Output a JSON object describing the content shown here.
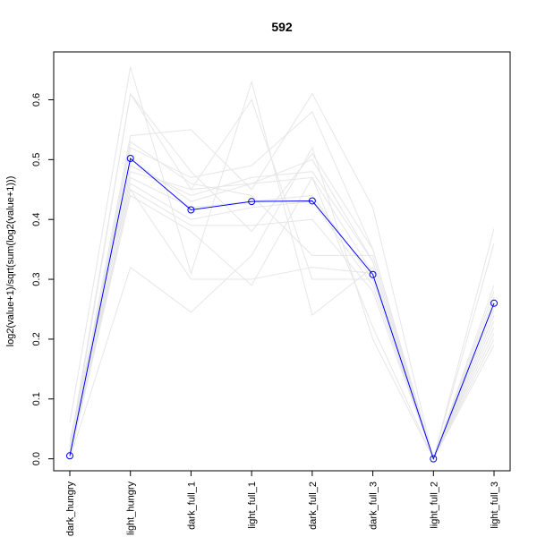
{
  "chart_data": {
    "type": "line",
    "title": "592",
    "ylabel": "log2(value+1)/sqrt(sum(log2(value+1)))",
    "categories": [
      "dark_hungry",
      "light_hungry",
      "dark_full_1",
      "light_full_1",
      "dark_full_2",
      "dark_full_3",
      "light_full_2",
      "light_full_3"
    ],
    "ylim": [
      -0.02,
      0.68
    ],
    "yticks": [
      0.0,
      0.1,
      0.2,
      0.3,
      0.4,
      0.5,
      0.6
    ],
    "ytick_labels": [
      "0.0",
      "0.1",
      "0.2",
      "0.3",
      "0.4",
      "0.5",
      "0.6"
    ],
    "grid": false,
    "highlight": {
      "values": [
        0.005,
        0.502,
        0.416,
        0.43,
        0.431,
        0.308,
        0.0,
        0.26
      ],
      "color": "#0000ff"
    },
    "background_series_color": "#e6e6e6",
    "background_series": [
      [
        0.06,
        0.655,
        0.31,
        0.63,
        0.24,
        0.32,
        0.0,
        0.385
      ],
      [
        0.02,
        0.61,
        0.45,
        0.6,
        0.3,
        0.3,
        0.0,
        0.36
      ],
      [
        0.01,
        0.54,
        0.55,
        0.45,
        0.61,
        0.42,
        0.0,
        0.29
      ],
      [
        0.0,
        0.52,
        0.47,
        0.49,
        0.58,
        0.35,
        0.0,
        0.28
      ],
      [
        0.03,
        0.5,
        0.43,
        0.46,
        0.5,
        0.33,
        0.0,
        0.27
      ],
      [
        0.02,
        0.49,
        0.44,
        0.47,
        0.48,
        0.33,
        0.0,
        0.26
      ],
      [
        0.01,
        0.48,
        0.45,
        0.46,
        0.47,
        0.31,
        0.0,
        0.25
      ],
      [
        0.0,
        0.47,
        0.42,
        0.43,
        0.44,
        0.3,
        0.0,
        0.24
      ],
      [
        0.02,
        0.46,
        0.4,
        0.42,
        0.43,
        0.29,
        0.0,
        0.23
      ],
      [
        0.01,
        0.45,
        0.39,
        0.39,
        0.4,
        0.28,
        0.0,
        0.22
      ],
      [
        0.0,
        0.45,
        0.3,
        0.3,
        0.32,
        0.31,
        0.0,
        0.21
      ],
      [
        0.0,
        0.44,
        0.38,
        0.29,
        0.47,
        0.22,
        0.0,
        0.2
      ],
      [
        0.0,
        0.32,
        0.245,
        0.34,
        0.52,
        0.2,
        0.0,
        0.19
      ],
      [
        0.01,
        0.61,
        0.48,
        0.38,
        0.51,
        0.35,
        0.0,
        0.26
      ],
      [
        0.0,
        0.53,
        0.46,
        0.44,
        0.34,
        0.34,
        0.0,
        0.24
      ]
    ]
  }
}
